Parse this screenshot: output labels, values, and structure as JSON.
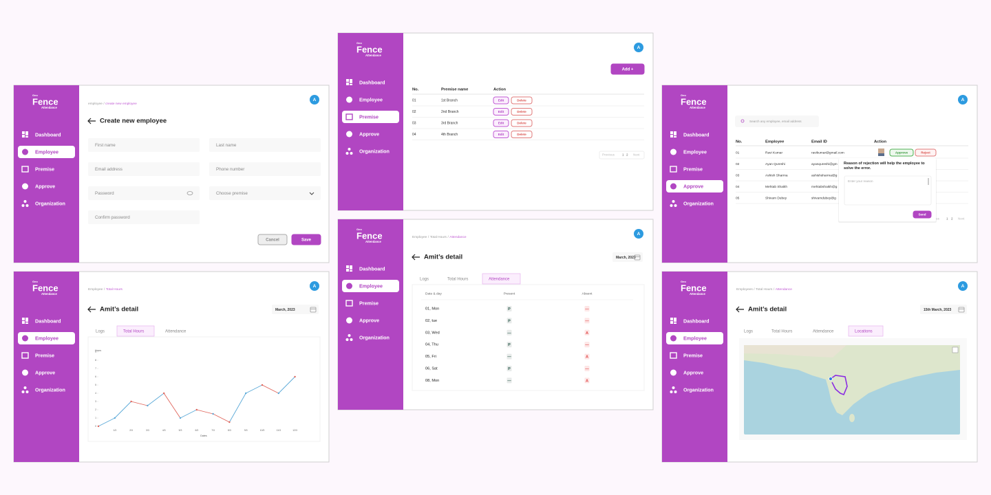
{
  "brand": {
    "top": "Geo",
    "name": "Fence",
    "sub": "Attendance"
  },
  "nav": [
    "Dashboard",
    "Employee",
    "Premise",
    "Approve",
    "Organization"
  ],
  "avatar": "A",
  "breadcrumb_separator": "/",
  "create_employee": {
    "breadcrumb": [
      "employee",
      "create new employee"
    ],
    "title": "Create new employee",
    "fields": [
      "First name",
      "Last name",
      "Email address",
      "Phone number",
      "Password",
      "Choose premise",
      "Confirm password"
    ],
    "buttons": [
      "Cancel",
      "Save"
    ]
  },
  "premise": {
    "add_button": "Add +",
    "columns": [
      "No.",
      "Premise name",
      "Action"
    ],
    "rows": [
      [
        "01",
        "1st Branch"
      ],
      [
        "02",
        "2nd Branch"
      ],
      [
        "03",
        "3rd Branch"
      ],
      [
        "04",
        "4th Branch"
      ]
    ],
    "actions": [
      "Edit",
      "Delete"
    ],
    "pagination": [
      "Previous",
      "1",
      "2",
      "Next"
    ]
  },
  "approve": {
    "search": "Search any employee, email address",
    "columns": [
      "No.",
      "Employee",
      "Email ID",
      "Action"
    ],
    "rows": [
      [
        "01",
        "Ravi Kumar",
        "ravikumar@gmail.com"
      ],
      [
        "02",
        "Ayan Qureshi",
        "ayanqureshi@gm"
      ],
      [
        "03",
        "Ashish Sharma",
        "ashishsharma@g"
      ],
      [
        "04",
        "Mehtab Shaikh",
        "mehtabshaikh@g"
      ],
      [
        "05",
        "Shivam Dubey",
        "shivamdubey@g"
      ]
    ],
    "actions": [
      "Approve",
      "Reject"
    ],
    "pagination": [
      "Previous",
      "1",
      "2",
      "Next"
    ],
    "popup": {
      "text": "Reason of rejection will help the employee to solve the error.",
      "placeholder": "Enter your reason",
      "button": "Send"
    }
  },
  "total_hours": {
    "breadcrumb": [
      "Employee",
      "Total Hours"
    ],
    "title": "Amit’s detail",
    "date": "March, 2023",
    "tabs": [
      "Logs",
      "Total Hours",
      "Attendance"
    ],
    "chart": {
      "type": "line",
      "y_label": "Hours",
      "x_label": "Dates",
      "categories": [
        null,
        "1/3",
        "2/3",
        "3/3",
        "4/3",
        "5/3",
        "6/3",
        "7/3",
        "8/3",
        "9/3",
        "10/3",
        "11/3",
        "12/3"
      ],
      "values": [
        0,
        1,
        3,
        2.5,
        4,
        1,
        2,
        1.5,
        0.5,
        4,
        5,
        4,
        6
      ],
      "ylim": [
        0,
        9
      ],
      "yticks": [
        0,
        1,
        2,
        3,
        4,
        5,
        6,
        7,
        8,
        9
      ],
      "colors": [
        "#e0645a",
        "#5aa9d8"
      ]
    }
  },
  "attendance": {
    "breadcrumb": [
      "Employee",
      "Total Hours",
      "Attendance"
    ],
    "title": "Amit’s detail",
    "date": "March, 2023",
    "tabs": [
      "Logs",
      "Total Hours",
      "Attendance"
    ],
    "columns": [
      "Date & day",
      "Present",
      "Absent"
    ],
    "rows": [
      [
        "01, Mon",
        "P",
        "—"
      ],
      [
        "02, tue",
        "P",
        "—"
      ],
      [
        "03, Wed",
        "—",
        "A"
      ],
      [
        "04, Thu",
        "P",
        "—"
      ],
      [
        "05, Fri",
        "—",
        "A"
      ],
      [
        "06, Sat",
        "P",
        "—"
      ],
      [
        "08, Mon",
        "—",
        "A"
      ]
    ]
  },
  "locations": {
    "breadcrumb": [
      "Employees",
      "Total Hours",
      "Attendance"
    ],
    "title": "Amit’s detail",
    "date": "15th March, 2023",
    "tabs": [
      "Logs",
      "Total Hours",
      "Attendance",
      "Locations"
    ]
  }
}
